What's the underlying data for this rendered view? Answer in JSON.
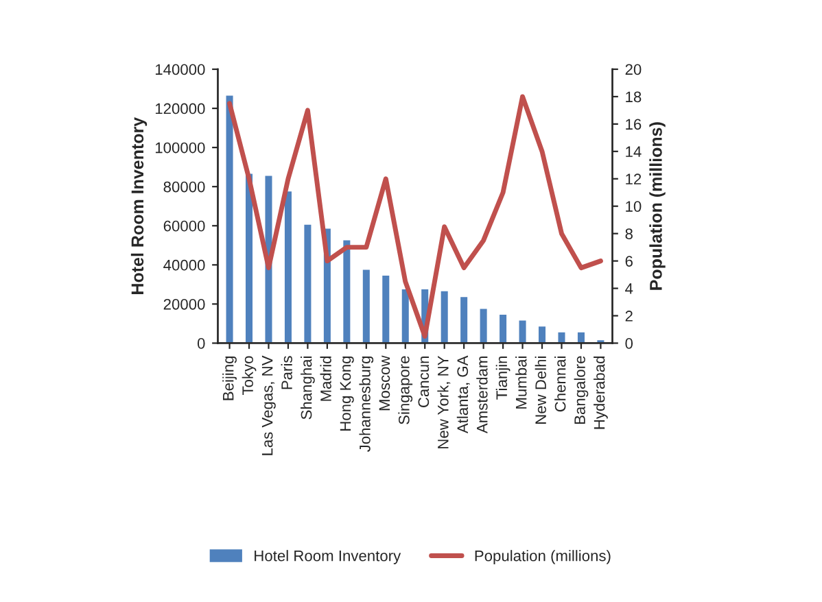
{
  "chart_data": {
    "type": "bar",
    "categories": [
      "Beijing",
      "Tokyo",
      "Las Vegas, NV",
      "Paris",
      "Shanghai",
      "Madrid",
      "Hong Kong",
      "Johannesburg",
      "Moscow",
      "Singapore",
      "Cancun",
      "New York, NY",
      "Atlanta, GA",
      "Amsterdam",
      "Tianjin",
      "Mumbai",
      "New Delhi",
      "Chennai",
      "Bangalore",
      "Hyderabad"
    ],
    "series": [
      {
        "name": "Hotel Room Inventory",
        "color": "#4f81bd",
        "values": [
          127000,
          87000,
          86000,
          78000,
          61000,
          59000,
          53000,
          38000,
          35000,
          28000,
          28000,
          27000,
          24000,
          18000,
          15000,
          12000,
          9000,
          6000,
          6000,
          2000
        ]
      },
      {
        "name": "Population (millions)",
        "type": "line",
        "axis": "y2",
        "color": "#c0504d",
        "values": [
          17.5,
          12,
          5.5,
          12,
          17,
          6,
          7,
          7,
          12,
          4.5,
          0.5,
          8.5,
          5.5,
          7.5,
          11,
          18,
          14,
          8,
          5.5,
          6
        ]
      }
    ],
    "ylabel": "Hotel Room Inventory",
    "y2label": "Population (millions)",
    "ylim": [
      0,
      140000
    ],
    "yticks": [
      0,
      20000,
      40000,
      60000,
      80000,
      100000,
      120000,
      140000
    ],
    "y2lim": [
      0,
      20
    ],
    "y2ticks": [
      0,
      2,
      4,
      6,
      8,
      10,
      12,
      14,
      16,
      18,
      20
    ],
    "legend": "bottom",
    "grid": false
  }
}
